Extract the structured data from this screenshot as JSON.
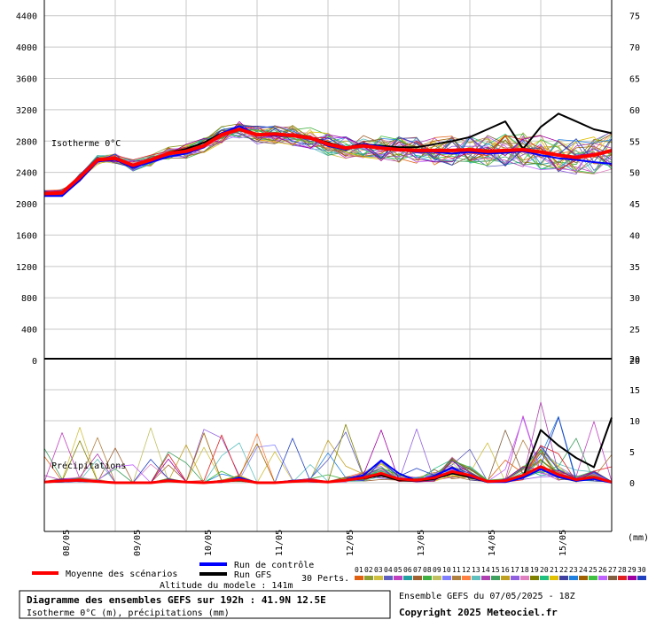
{
  "chart_data": [
    {
      "type": "line",
      "title": "Isotherme 0°C",
      "ylabel": "",
      "y_ticks_left": [
        "4400",
        "4000",
        "3600",
        "3200",
        "2800",
        "2400",
        "2000",
        "1600",
        "1200",
        "800",
        "400",
        "0"
      ],
      "y_ticks_right": [
        "75",
        "70",
        "65",
        "60",
        "55",
        "50",
        "45",
        "40",
        "35",
        "30",
        "25",
        "20"
      ],
      "ylim": [
        0,
        4600
      ],
      "x_ticks": [
        "08/05",
        "09/05",
        "10/05",
        "11/05",
        "12/05",
        "13/05",
        "14/05",
        "15/05"
      ],
      "x": [
        0,
        6,
        12,
        18,
        24,
        30,
        36,
        42,
        48,
        54,
        60,
        66,
        72,
        78,
        84,
        90,
        96,
        102,
        108,
        114,
        120,
        126,
        132,
        138,
        144,
        150,
        156,
        162,
        168,
        174,
        180,
        186,
        192
      ],
      "series": [
        {
          "name": "Moyenne des scénarios",
          "values": [
            2130,
            2140,
            2340,
            2560,
            2580,
            2490,
            2560,
            2640,
            2670,
            2740,
            2880,
            2950,
            2880,
            2890,
            2870,
            2840,
            2760,
            2710,
            2740,
            2710,
            2690,
            2680,
            2680,
            2680,
            2690,
            2670,
            2680,
            2690,
            2660,
            2620,
            2590,
            2620,
            2680
          ]
        },
        {
          "name": "Run de contrôle",
          "values": [
            2100,
            2100,
            2300,
            2540,
            2560,
            2460,
            2530,
            2600,
            2640,
            2720,
            2900,
            2990,
            2880,
            2870,
            2860,
            2830,
            2740,
            2690,
            2760,
            2730,
            2690,
            2660,
            2660,
            2640,
            2660,
            2640,
            2650,
            2670,
            2620,
            2580,
            2560,
            2530,
            2510
          ]
        },
        {
          "name": "Run GFS",
          "values": [
            2120,
            2130,
            2330,
            2550,
            2570,
            2480,
            2560,
            2650,
            2700,
            2780,
            2900,
            2960,
            2890,
            2880,
            2880,
            2850,
            2780,
            2720,
            2760,
            2740,
            2720,
            2720,
            2760,
            2800,
            2850,
            2950,
            3050,
            2700,
            2980,
            3150,
            3050,
            2950,
            2900
          ]
        }
      ]
    },
    {
      "type": "line",
      "title": "Précipitations",
      "unit": "(mm)",
      "y_ticks_right": [
        "20",
        "15",
        "10",
        "5",
        "0"
      ],
      "ylim": [
        -8,
        20
      ],
      "x": [
        0,
        6,
        12,
        18,
        24,
        30,
        36,
        42,
        48,
        54,
        60,
        66,
        72,
        78,
        84,
        90,
        96,
        102,
        108,
        114,
        120,
        126,
        132,
        138,
        144,
        150,
        156,
        162,
        168,
        174,
        180,
        186,
        192
      ],
      "series": [
        {
          "name": "Moyenne des scénarios",
          "values": [
            0.1,
            0.3,
            0.4,
            0.2,
            0,
            0,
            0,
            0.3,
            0.1,
            0,
            0.2,
            0.5,
            0,
            0,
            0.2,
            0.3,
            0.1,
            0.4,
            0.8,
            1.5,
            0.6,
            0.4,
            0.8,
            1.8,
            1.2,
            0.2,
            0.3,
            1.2,
            2.6,
            1.3,
            0.5,
            0.9,
            0.1
          ]
        },
        {
          "name": "Run de contrôle",
          "values": [
            0.1,
            0.2,
            0.3,
            0.2,
            0,
            0,
            0,
            0.4,
            0.1,
            0,
            0.1,
            0.8,
            0,
            0,
            0.3,
            0.2,
            0.1,
            0.5,
            1.2,
            3.6,
            1.5,
            0.3,
            1.1,
            2.4,
            1.0,
            0.1,
            0.1,
            0.8,
            2.2,
            0.9,
            0.3,
            0.6,
            0
          ]
        },
        {
          "name": "Run GFS",
          "values": [
            0.1,
            0.2,
            0.3,
            0.2,
            0,
            0,
            0,
            0.3,
            0.1,
            0,
            0.2,
            0.4,
            0,
            0,
            0.2,
            0.3,
            0.1,
            0.4,
            0.7,
            1.2,
            0.4,
            0.3,
            0.6,
            1.5,
            0.9,
            0.1,
            0.2,
            0.9,
            8.5,
            6.0,
            4.0,
            2.5,
            10.5
          ]
        }
      ]
    }
  ],
  "legend": {
    "mean": "Moyenne des scénarios",
    "control": "Run de contrôle",
    "gfs": "Run GFS",
    "perts": "30 Perts.",
    "pert_numbers": [
      "01",
      "02",
      "03",
      "04",
      "05",
      "06",
      "07",
      "08",
      "09",
      "10",
      "11",
      "12",
      "13",
      "14",
      "15",
      "16",
      "17",
      "18",
      "19",
      "20",
      "21",
      "22",
      "23",
      "24",
      "25",
      "26",
      "27",
      "28",
      "29",
      "30"
    ],
    "pert_colors": [
      "#e06010",
      "#90a030",
      "#d0c040",
      "#6060c0",
      "#c040c0",
      "#20a0a0",
      "#a06030",
      "#40b040",
      "#c0c060",
      "#8080ff",
      "#b08040",
      "#ff8040",
      "#60c0c0",
      "#b040b0",
      "#40a060",
      "#c0a020",
      "#9060e0",
      "#e080c0",
      "#808000",
      "#20c080",
      "#e0c000",
      "#4040a0",
      "#2080e0",
      "#a06000",
      "#40c040",
      "#c060ff",
      "#806040",
      "#e02020",
      "#a000a0",
      "#2040c0"
    ],
    "colors": {
      "mean": "#ff0000",
      "control": "#0000ff",
      "gfs": "#000000"
    }
  },
  "footer": {
    "altitude": "Altitude du modele : 141m",
    "title": "Diagramme des ensembles GEFS sur 192h : 41.9N 12.5E",
    "subtitle": "Isotherme 0°C (m), précipitations (mm)",
    "run": "Ensemble GEFS du 07/05/2025 - 18Z",
    "copyright": "Copyright 2025 Meteociel.fr"
  }
}
